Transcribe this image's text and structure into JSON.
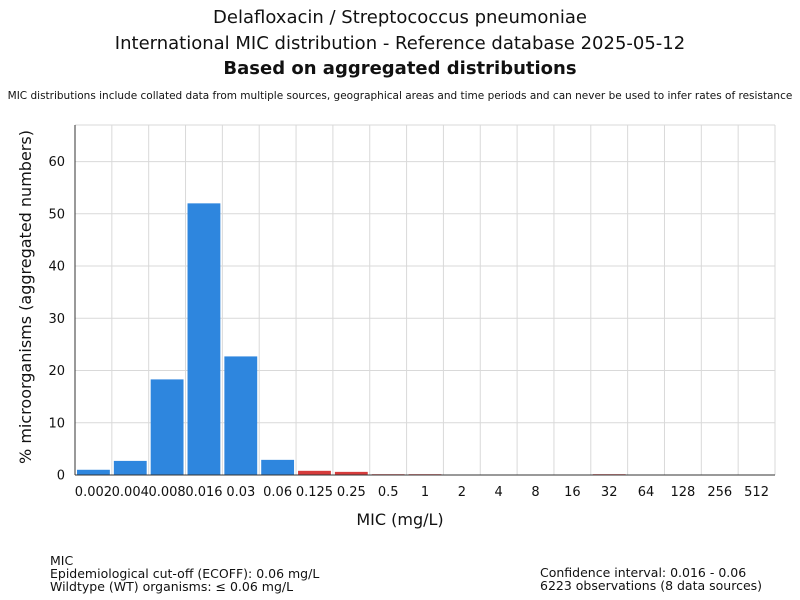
{
  "chart_data": {
    "type": "bar",
    "title": "Delafloxacin / Streptococcus pneumoniae",
    "subtitle": "International MIC distribution - Reference database 2025-05-12",
    "subtitle2": "Based on aggregated distributions",
    "note": "MIC distributions include collated data from multiple sources, geographical areas and time periods and can never be used to infer rates of resistance",
    "xlabel": "MIC (mg/L)",
    "ylabel": "% microorganisms (aggregated numbers)",
    "categories": [
      "0.002",
      "0.004",
      "0.008",
      "0.016",
      "0.03",
      "0.06",
      "0.125",
      "0.25",
      "0.5",
      "1",
      "2",
      "4",
      "8",
      "16",
      "32",
      "64",
      "128",
      "256",
      "512"
    ],
    "values": [
      1.0,
      2.7,
      18.3,
      52.0,
      22.7,
      2.9,
      0.8,
      0.6,
      0.15,
      0.15,
      0,
      0,
      0,
      0,
      0.15,
      0,
      0,
      0,
      0
    ],
    "ylim": [
      0,
      67
    ],
    "yticks": [
      0,
      10,
      20,
      30,
      40,
      50,
      60
    ],
    "grid": true,
    "ecoff": "0.06",
    "colors": {
      "wildtype": "#2e86de",
      "non_wildtype": "#d63c3c",
      "grid": "#d9d9d9",
      "axis": "#333333"
    }
  },
  "footer": {
    "left": [
      "MIC",
      "Epidemiological cut-off (ECOFF): 0.06 mg/L",
      "Wildtype (WT) organisms: ≤ 0.06 mg/L"
    ],
    "right": [
      "Confidence interval: 0.016 - 0.06",
      "6223 observations (8 data sources)"
    ]
  }
}
